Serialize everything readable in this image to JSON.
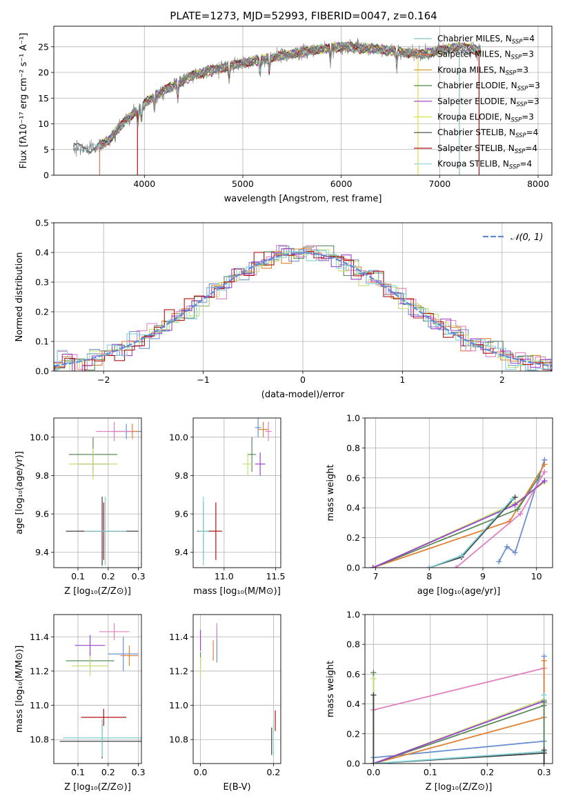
{
  "title": "PLATE=1273, MJD=52993, FIBERID=0047, z=0.164",
  "colors": {
    "chabrier_miles": "#7fbfbf",
    "salpeter_miles": "#e0704a",
    "kroupa_miles": "#d89b2c",
    "chabrier_elodie": "#4a8a4a",
    "salpeter_elodie": "#9a30c8",
    "kroupa_elodie": "#d8e040",
    "chabrier_stelib": "#404040",
    "salpeter_stelib": "#b01010",
    "kroupa_stelib": "#90d8e0",
    "data": "#808080",
    "normal": "#5b8bd6",
    "hist_blue": "#6a8fd0",
    "hist_orange": "#e08030",
    "hist_green": "#5a8a5a",
    "hist_pink": "#e080c0",
    "hist_lime": "#c0e070",
    "hist_purple": "#9a40d0",
    "hist_red": "#b01010",
    "hist_cyan": "#80d0d8"
  },
  "chart_data": [
    {
      "id": "spectrum",
      "type": "line",
      "xlabel": "wavelength [Angstrom, rest frame]",
      "ylabel": "Flux [fλ10⁻¹⁷ erg cm⁻² s⁻¹ A⁻¹]",
      "xlim": [
        3080,
        8140
      ],
      "ylim": [
        0,
        29
      ],
      "xticks": [
        4000,
        5000,
        6000,
        7000,
        8000
      ],
      "yticks": [
        0,
        5,
        10,
        15,
        20,
        25
      ],
      "legend_position": "top-right",
      "legend": [
        "Chabrier MILES, N_SSP=4",
        "Salpeter MILES, N_SSP=3",
        "Kroupa MILES, N_SSP=3",
        "Chabrier ELODIE, N_SSP=3",
        "Salpeter ELODIE, N_SSP=3",
        "Kroupa ELODIE, N_SSP=3",
        "Chabrier STELIB, N_SSP=4",
        "Salpeter STELIB, N_SSP=4",
        "Kroupa STELIB, N_SSP=4"
      ],
      "continuum": {
        "wavelength": [
          3280,
          3500,
          3650,
          3800,
          3950,
          4100,
          4300,
          4500,
          4800,
          5200,
          5600,
          6000,
          6400,
          6800,
          7200,
          7500
        ],
        "flux": [
          5.5,
          5.2,
          7,
          10.5,
          13,
          15.5,
          17.5,
          19.5,
          21,
          22.5,
          24,
          25,
          24.5,
          23.5,
          25,
          24
        ]
      }
    },
    {
      "id": "residuals",
      "type": "line",
      "xlabel": "(data-model)/error",
      "ylabel": "Normed distribution",
      "xlim": [
        -2.5,
        2.5
      ],
      "ylim": [
        0,
        0.5
      ],
      "xticks": [
        -2,
        -1,
        0,
        1,
        2
      ],
      "yticks": [
        0.0,
        0.1,
        0.2,
        0.3,
        0.4,
        0.5
      ],
      "legend_position": "top-right",
      "legend": [
        "𝒩(0, 1)"
      ]
    },
    {
      "id": "age_vs_Z",
      "type": "scatter",
      "xlabel": "Z [log₁₀(Z/Z⊙)]",
      "ylabel": "age  [log₁₀(age/yr)]",
      "xlim": [
        0.02,
        0.31
      ],
      "ylim": [
        9.32,
        10.1
      ],
      "xticks": [
        0.1,
        0.2,
        0.3
      ],
      "yticks": [
        9.4,
        9.6,
        9.8,
        10.0
      ],
      "points": [
        {
          "x": 0.26,
          "y": 10.03,
          "xerr": 0.05,
          "yerr": 0.04,
          "color": "blue"
        },
        {
          "x": 0.28,
          "y": 10.03,
          "xerr": 0.02,
          "yerr": 0.04,
          "color": "orange"
        },
        {
          "x": 0.22,
          "y": 10.03,
          "xerr": 0.06,
          "yerr": 0.05,
          "color": "pink"
        },
        {
          "x": 0.15,
          "y": 9.91,
          "xerr": 0.08,
          "yerr": 0.09,
          "color": "green"
        },
        {
          "x": 0.15,
          "y": 9.86,
          "xerr": 0.05,
          "yerr": 0.06,
          "color": "purple"
        },
        {
          "x": 0.15,
          "y": 9.86,
          "xerr": 0.08,
          "yerr": 0.08,
          "color": "lime"
        },
        {
          "x": 0.18,
          "y": 9.51,
          "xerr": 0.12,
          "yerr": 0.18,
          "color": "dark"
        },
        {
          "x": 0.185,
          "y": 9.51,
          "xerr": 0.07,
          "yerr": 0.15,
          "color": "red"
        },
        {
          "x": 0.19,
          "y": 9.51,
          "xerr": 0.07,
          "yerr": 0.18,
          "color": "cyan"
        }
      ]
    },
    {
      "id": "age_vs_mass",
      "type": "scatter",
      "xlabel": "mass [log₁₀(M/M⊙)]",
      "ylabel": "",
      "xlim": [
        10.7,
        11.55
      ],
      "ylim": [
        9.32,
        10.1
      ],
      "xticks": [
        11.0,
        11.5
      ],
      "yticks": [
        9.4,
        9.6,
        9.8,
        10.0
      ],
      "points": [
        {
          "x": 11.33,
          "y": 10.05,
          "xerr": 0.03,
          "yerr": 0.05,
          "color": "blue"
        },
        {
          "x": 11.38,
          "y": 10.04,
          "xerr": 0.05,
          "yerr": 0.04,
          "color": "orange"
        },
        {
          "x": 11.43,
          "y": 10.03,
          "xerr": 0.03,
          "yerr": 0.05,
          "color": "pink"
        },
        {
          "x": 11.27,
          "y": 9.91,
          "xerr": 0.04,
          "yerr": 0.09,
          "color": "green"
        },
        {
          "x": 11.35,
          "y": 9.86,
          "xerr": 0.05,
          "yerr": 0.06,
          "color": "purple"
        },
        {
          "x": 11.23,
          "y": 9.86,
          "xerr": 0.05,
          "yerr": 0.06,
          "color": "lime"
        },
        {
          "x": 10.8,
          "y": 9.51,
          "xerr": 0.06,
          "yerr": 0.15,
          "color": "dark"
        },
        {
          "x": 10.92,
          "y": 9.51,
          "xerr": 0.06,
          "yerr": 0.15,
          "color": "red"
        },
        {
          "x": 10.8,
          "y": 9.51,
          "xerr": 0.05,
          "yerr": 0.18,
          "color": "cyan"
        }
      ]
    },
    {
      "id": "massweight_vs_age",
      "type": "line",
      "xlabel": "age  [log₁₀(age/yr)]",
      "ylabel": "mass weight",
      "xlim": [
        6.8,
        10.3
      ],
      "ylim": [
        0,
        1
      ],
      "xticks": [
        7,
        8,
        9,
        10
      ],
      "yticks": [
        0.0,
        0.2,
        0.4,
        0.6,
        0.8,
        1.0
      ],
      "series": [
        {
          "color": "blue",
          "x": [
            9.3,
            9.45,
            9.6,
            10.15
          ],
          "y": [
            0.04,
            0.14,
            0.1,
            0.72
          ]
        },
        {
          "color": "orange",
          "x": [
            6.95,
            9.5,
            10.15
          ],
          "y": [
            0.0,
            0.31,
            0.69
          ]
        },
        {
          "color": "green",
          "x": [
            6.95,
            9.65,
            10.05
          ],
          "y": [
            0.0,
            0.39,
            0.61
          ]
        },
        {
          "color": "pink",
          "x": [
            8.5,
            9.7,
            10.15
          ],
          "y": [
            0.0,
            0.36,
            0.64
          ]
        },
        {
          "color": "lime",
          "x": [
            6.95,
            9.6,
            10.15
          ],
          "y": [
            0.0,
            0.43,
            0.57
          ]
        },
        {
          "color": "purple",
          "x": [
            6.95,
            9.6,
            10.15
          ],
          "y": [
            0.0,
            0.42,
            0.58
          ]
        },
        {
          "color": "dark",
          "x": [
            8.0,
            8.6,
            9.6
          ],
          "y": [
            0.0,
            0.07,
            0.47
          ]
        },
        {
          "color": "cyan",
          "x": [
            8.0,
            8.6,
            9.55
          ],
          "y": [
            0.0,
            0.08,
            0.46
          ]
        }
      ]
    },
    {
      "id": "mass_vs_Z",
      "type": "scatter",
      "xlabel": "Z [log₁₀(Z/Z⊙)]",
      "ylabel": "mass [log₁₀(M/M⊙)]",
      "xlim": [
        0.02,
        0.31
      ],
      "ylim": [
        10.66,
        11.53
      ],
      "xticks": [
        0.1,
        0.2,
        0.3
      ],
      "yticks": [
        10.8,
        11.0,
        11.2,
        11.4
      ],
      "points": [
        {
          "x": 0.25,
          "y": 11.3,
          "xerr": 0.05,
          "yerr": 0.1,
          "color": "blue"
        },
        {
          "x": 0.27,
          "y": 11.29,
          "xerr": 0.03,
          "yerr": 0.06,
          "color": "orange"
        },
        {
          "x": 0.22,
          "y": 11.43,
          "xerr": 0.05,
          "yerr": 0.05,
          "color": "pink"
        },
        {
          "x": 0.14,
          "y": 11.26,
          "xerr": 0.08,
          "yerr": 0.05,
          "color": "green"
        },
        {
          "x": 0.14,
          "y": 11.35,
          "xerr": 0.05,
          "yerr": 0.06,
          "color": "purple"
        },
        {
          "x": 0.14,
          "y": 11.23,
          "xerr": 0.06,
          "yerr": 0.06,
          "color": "lime"
        },
        {
          "x": 0.18,
          "y": 10.79,
          "xerr": 0.14,
          "yerr": 0.1,
          "color": "dark"
        },
        {
          "x": 0.185,
          "y": 10.93,
          "xerr": 0.075,
          "yerr": 0.05,
          "color": "red"
        },
        {
          "x": 0.18,
          "y": 10.81,
          "xerr": 0.13,
          "yerr": 0.11,
          "color": "cyan"
        }
      ]
    },
    {
      "id": "mass_vs_ebv",
      "type": "scatter",
      "xlabel": "E(B-V)",
      "ylabel": "",
      "xlim": [
        -0.02,
        0.22
      ],
      "ylim": [
        10.66,
        11.53
      ],
      "xticks": [
        0.0,
        0.2
      ],
      "yticks": [
        10.8,
        11.0,
        11.2,
        11.4
      ],
      "points": [
        {
          "x": 0.045,
          "y": 11.35,
          "xerr": 0,
          "yerr": 0.1,
          "color": "blue"
        },
        {
          "x": 0.035,
          "y": 11.32,
          "xerr": 0,
          "yerr": 0.06,
          "color": "orange"
        },
        {
          "x": 0.045,
          "y": 11.43,
          "xerr": 0,
          "yerr": 0.05,
          "color": "pink"
        },
        {
          "x": 0.0,
          "y": 11.26,
          "xerr": 0,
          "yerr": 0.05,
          "color": "green"
        },
        {
          "x": 0.0,
          "y": 11.38,
          "xerr": 0,
          "yerr": 0.06,
          "color": "purple"
        },
        {
          "x": 0.0,
          "y": 11.22,
          "xerr": 0,
          "yerr": 0.06,
          "color": "lime"
        },
        {
          "x": 0.195,
          "y": 10.79,
          "xerr": 0,
          "yerr": 0.08,
          "color": "dark"
        },
        {
          "x": 0.205,
          "y": 10.91,
          "xerr": 0,
          "yerr": 0.06,
          "color": "red"
        },
        {
          "x": 0.2,
          "y": 10.81,
          "xerr": 0,
          "yerr": 0.11,
          "color": "cyan"
        }
      ]
    },
    {
      "id": "massweight_vs_Z",
      "type": "line",
      "xlabel": "Z [log₁₀(Z/Z⊙)]",
      "ylabel": "mass weight",
      "xlim": [
        -0.015,
        0.315
      ],
      "ylim": [
        0,
        1
      ],
      "xticks": [
        0.0,
        0.1,
        0.2,
        0.3
      ],
      "yticks": [
        0.0,
        0.2,
        0.4,
        0.6,
        0.8,
        1.0
      ],
      "series": [
        {
          "color": "blue",
          "x": [
            0.0,
            0.3
          ],
          "y": [
            0.04,
            0.15
          ]
        },
        {
          "color": "orange",
          "x": [
            0.0,
            0.3
          ],
          "y": [
            0.0,
            0.31
          ]
        },
        {
          "color": "green",
          "x": [
            0.0,
            0.3
          ],
          "y": [
            0.0,
            0.39
          ]
        },
        {
          "color": "pink",
          "x": [
            0.0,
            0.3
          ],
          "y": [
            0.36,
            0.64
          ]
        },
        {
          "color": "lime",
          "x": [
            0.0,
            0.3
          ],
          "y": [
            0.0,
            0.43
          ]
        },
        {
          "color": "purple",
          "x": [
            0.0,
            0.3
          ],
          "y": [
            0.0,
            0.42
          ]
        },
        {
          "color": "dark",
          "x": [
            0.0,
            0.3
          ],
          "y": [
            0.0,
            0.07
          ]
        },
        {
          "color": "cyan",
          "x": [
            0.0,
            0.3
          ],
          "y": [
            0.0,
            0.08
          ]
        }
      ],
      "markers": [
        {
          "color": "green",
          "x": 0.0,
          "y": 0.61
        },
        {
          "color": "lime",
          "x": 0.0,
          "y": 0.57
        },
        {
          "color": "dark",
          "x": 0.0,
          "y": 0.46
        },
        {
          "color": "blue",
          "x": 0.3,
          "y": 0.72
        },
        {
          "color": "orange",
          "x": 0.3,
          "y": 0.69
        },
        {
          "color": "cyan",
          "x": 0.3,
          "y": 0.46
        },
        {
          "color": "green",
          "x": 0.3,
          "y": 0.41
        },
        {
          "color": "dark",
          "x": 0.3,
          "y": 0.09
        }
      ]
    }
  ]
}
